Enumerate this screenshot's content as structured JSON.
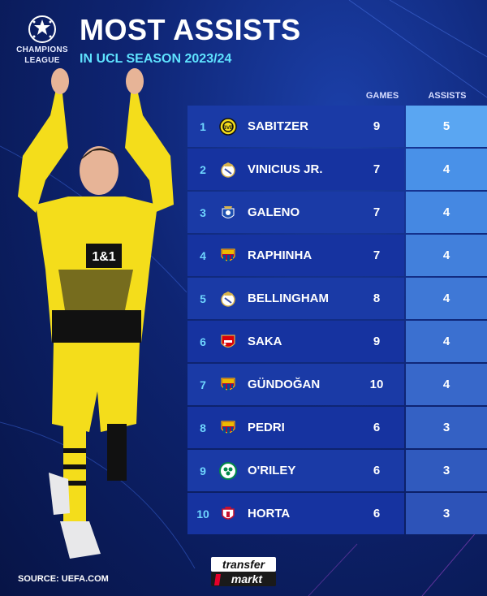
{
  "header": {
    "logo_line1": "CHAMPIONS",
    "logo_line2": "LEAGUE",
    "title": "MOST ASSISTS",
    "subtitle": "IN UCL SEASON 2023/24"
  },
  "columns": {
    "games": "GAMES",
    "assists": "ASSISTS"
  },
  "rows": [
    {
      "rank": "1",
      "name": "SABITZER",
      "club_icon": "dortmund-crest",
      "games": "9",
      "assists": "5",
      "assist_color": "#5aa6f2"
    },
    {
      "rank": "2",
      "name": "VINICIUS JR.",
      "club_icon": "real-madrid-crest",
      "games": "7",
      "assists": "4",
      "assist_color": "#4991e8"
    },
    {
      "rank": "3",
      "name": "GALENO",
      "club_icon": "porto-crest",
      "games": "7",
      "assists": "4",
      "assist_color": "#4588e2"
    },
    {
      "rank": "4",
      "name": "RAPHINHA",
      "club_icon": "barcelona-crest",
      "games": "7",
      "assists": "4",
      "assist_color": "#4280dc"
    },
    {
      "rank": "5",
      "name": "BELLINGHAM",
      "club_icon": "real-madrid-crest",
      "games": "8",
      "assists": "4",
      "assist_color": "#3f78d6"
    },
    {
      "rank": "6",
      "name": "SAKA",
      "club_icon": "arsenal-crest",
      "games": "9",
      "assists": "4",
      "assist_color": "#3b70d0"
    },
    {
      "rank": "7",
      "name": "GÜNDOĞAN",
      "club_icon": "barcelona-crest",
      "games": "10",
      "assists": "4",
      "assist_color": "#3868ca"
    },
    {
      "rank": "8",
      "name": "PEDRI",
      "club_icon": "barcelona-crest",
      "games": "6",
      "assists": "3",
      "assist_color": "#3461c4"
    },
    {
      "rank": "9",
      "name": "O'RILEY",
      "club_icon": "celtic-crest",
      "games": "6",
      "assists": "3",
      "assist_color": "#305abe"
    },
    {
      "rank": "10",
      "name": "HORTA",
      "club_icon": "braga-crest",
      "games": "6",
      "assists": "3",
      "assist_color": "#2d53b8"
    }
  ],
  "footer": {
    "source": "SOURCE: UEFA.COM",
    "brand_line1": "transfer",
    "brand_line2": "markt"
  }
}
